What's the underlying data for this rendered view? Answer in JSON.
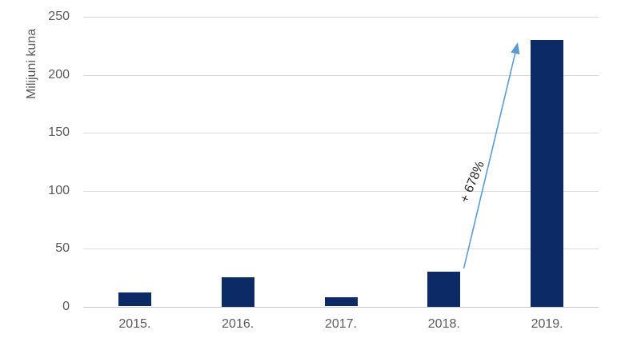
{
  "chart_data": {
    "type": "bar",
    "categories": [
      "2015.",
      "2016.",
      "2017.",
      "2018.",
      "2019."
    ],
    "values": [
      12,
      25,
      8,
      30,
      230
    ],
    "title": "",
    "xlabel": "",
    "ylabel": "Milijuni kuna",
    "ylim": [
      0,
      250
    ],
    "yticks": [
      0,
      50,
      100,
      150,
      200,
      250
    ],
    "grid": true,
    "legend": "none",
    "annotation": {
      "text": "+ 678%",
      "from_category": "2018.",
      "to_category": "2019."
    },
    "colors": {
      "bar": "#0B2A66",
      "arrow": "#5B9BD5",
      "gridline": "#D9D9D9",
      "axis_line": "#C6C6C6",
      "tick_text": "#595959",
      "axis_title_text": "#595959",
      "annotation_text": "#262626",
      "background": "#FFFFFF"
    }
  }
}
